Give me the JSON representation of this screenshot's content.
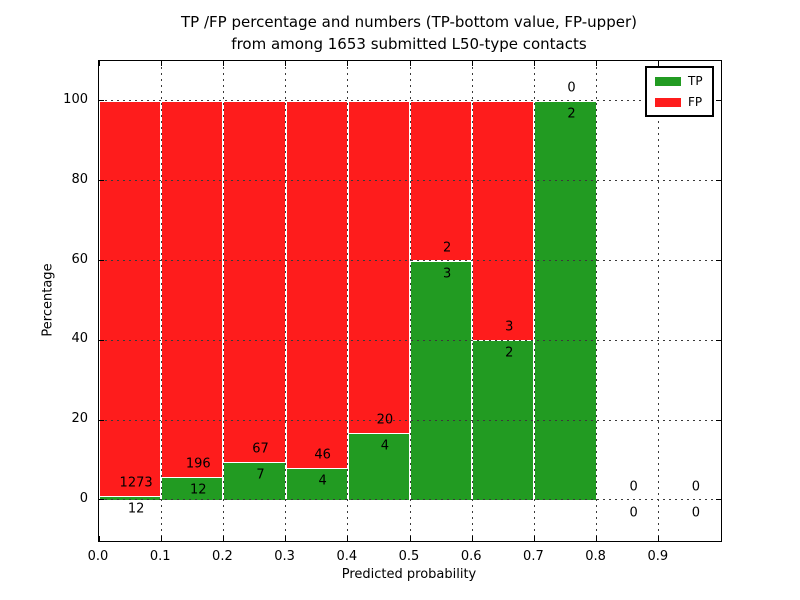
{
  "figure": {
    "title_line1": "TP /FP percentage and numbers (TP-bottom value, FP-upper)",
    "title_line2": "from among 1653 submitted L50-type contacts",
    "xlabel": "Predicted probability",
    "ylabel": "Percentage"
  },
  "legend": {
    "position": "upper-right",
    "items": [
      {
        "label": "TP",
        "color": "#229b22"
      },
      {
        "label": "FP",
        "color": "#fe1c1c"
      }
    ]
  },
  "chart_data": {
    "type": "bar",
    "stacked": true,
    "title": "TP /FP percentage and numbers (TP-bottom value, FP-upper) from among 1653 submitted L50-type contacts",
    "xlabel": "Predicted probability",
    "ylabel": "Percentage",
    "total_contacts": 1653,
    "xlim": [
      0.0,
      1.0
    ],
    "ylim": [
      -10.3,
      110.0
    ],
    "xticks": [
      0.0,
      0.1,
      0.2,
      0.3,
      0.4,
      0.5,
      0.6,
      0.7,
      0.8,
      0.9
    ],
    "xtick_labels": [
      "0.0",
      "0.1",
      "0.2",
      "0.3",
      "0.4",
      "0.5",
      "0.6",
      "0.7",
      "0.8",
      "0.9"
    ],
    "yticks": [
      0,
      20,
      40,
      60,
      80,
      100
    ],
    "ytick_labels": [
      "0",
      "20",
      "40",
      "60",
      "80",
      "100"
    ],
    "grid": true,
    "bar_width": 0.1,
    "legend_position": "upper right",
    "series": [
      {
        "name": "TP",
        "color": "#229b22"
      },
      {
        "name": "FP",
        "color": "#fe1c1c"
      }
    ],
    "bins": [
      {
        "range": [
          0.0,
          0.1
        ],
        "tp": 12,
        "fp": 1273,
        "tp_percent": 0.93,
        "fp_percent": 99.07
      },
      {
        "range": [
          0.1,
          0.2
        ],
        "tp": 12,
        "fp": 196,
        "tp_percent": 5.77,
        "fp_percent": 94.23
      },
      {
        "range": [
          0.2,
          0.3
        ],
        "tp": 7,
        "fp": 67,
        "tp_percent": 9.46,
        "fp_percent": 90.54
      },
      {
        "range": [
          0.3,
          0.4
        ],
        "tp": 4,
        "fp": 46,
        "tp_percent": 8.0,
        "fp_percent": 92.0
      },
      {
        "range": [
          0.4,
          0.5
        ],
        "tp": 4,
        "fp": 20,
        "tp_percent": 16.67,
        "fp_percent": 83.33
      },
      {
        "range": [
          0.5,
          0.6
        ],
        "tp": 3,
        "fp": 2,
        "tp_percent": 60.0,
        "fp_percent": 40.0
      },
      {
        "range": [
          0.6,
          0.7
        ],
        "tp": 2,
        "fp": 3,
        "tp_percent": 40.0,
        "fp_percent": 60.0
      },
      {
        "range": [
          0.7,
          0.8
        ],
        "tp": 2,
        "fp": 0,
        "tp_percent": 100.0,
        "fp_percent": 0.0
      },
      {
        "range": [
          0.8,
          0.9
        ],
        "tp": 0,
        "fp": 0,
        "tp_percent": 0.0,
        "fp_percent": 0.0
      },
      {
        "range": [
          0.9,
          1.0
        ],
        "tp": 0,
        "fp": 0,
        "tp_percent": 0.0,
        "fp_percent": 0.0
      }
    ]
  }
}
